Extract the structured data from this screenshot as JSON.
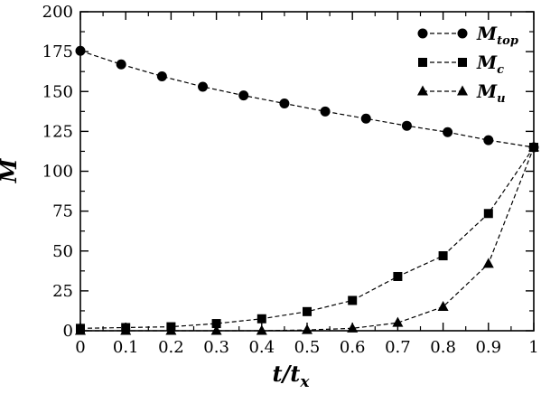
{
  "chart_data": {
    "type": "line",
    "xlabel": "t/t",
    "xlabel_sub": "x",
    "ylabel": "M",
    "xlim": [
      0,
      1
    ],
    "ylim": [
      0,
      200
    ],
    "x_ticks": [
      0,
      0.1,
      0.2,
      0.3,
      0.4,
      0.5,
      0.6,
      0.7,
      0.8,
      0.9,
      1
    ],
    "x_tick_labels": [
      "0",
      "0.1",
      "0.2",
      "0.3",
      "0.4",
      "0.5",
      "0.6",
      "0.7",
      "0.8",
      "0.9",
      "1"
    ],
    "y_ticks": [
      0,
      25,
      50,
      75,
      100,
      125,
      150,
      175,
      200
    ],
    "y_tick_labels": [
      "0",
      "25",
      "50",
      "75",
      "100",
      "125",
      "150",
      "175",
      "200"
    ],
    "grid": false,
    "legend_position": "top-right",
    "series": [
      {
        "name": "M",
        "name_sub": "top",
        "marker": "circle",
        "line_style": "dashed",
        "color": "#000000",
        "x": [
          0,
          0.09,
          0.18,
          0.27,
          0.36,
          0.45,
          0.54,
          0.63,
          0.72,
          0.81,
          0.9,
          1.0
        ],
        "y": [
          175.5,
          167,
          159.5,
          153,
          147.5,
          142.5,
          137.5,
          133,
          128.5,
          124.5,
          119.5,
          115
        ]
      },
      {
        "name": "M",
        "name_sub": "c",
        "marker": "square",
        "line_style": "dashed",
        "color": "#000000",
        "x": [
          0,
          0.1,
          0.2,
          0.3,
          0.4,
          0.5,
          0.6,
          0.7,
          0.8,
          0.9,
          1.0
        ],
        "y": [
          1.5,
          2,
          2.5,
          4.5,
          7.5,
          12,
          19,
          34,
          47,
          73.5,
          115
        ]
      },
      {
        "name": "M",
        "name_sub": "u",
        "marker": "triangle",
        "line_style": "dashed",
        "color": "#000000",
        "x": [
          0,
          0.1,
          0.2,
          0.3,
          0.4,
          0.5,
          0.6,
          0.7,
          0.8,
          0.9,
          1.0
        ],
        "y": [
          0,
          0,
          0,
          0,
          0,
          0.5,
          1.5,
          5,
          15,
          42,
          115
        ]
      }
    ]
  }
}
